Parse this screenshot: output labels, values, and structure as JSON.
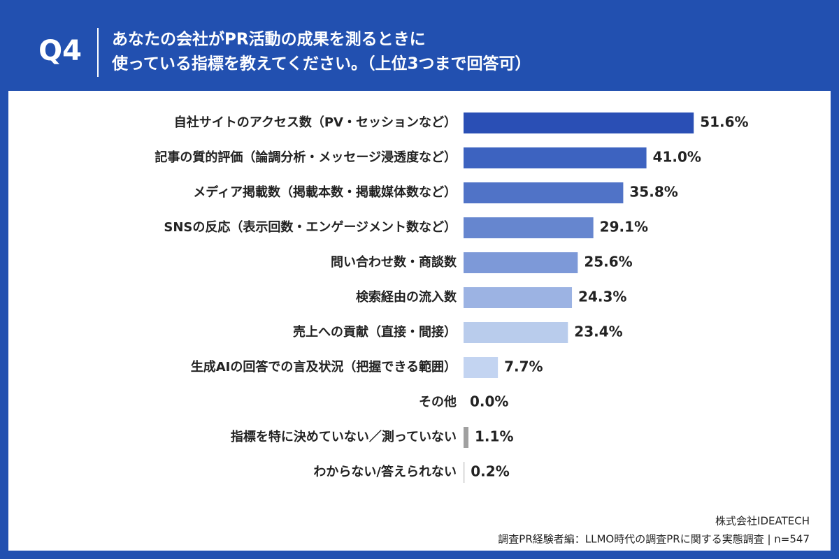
{
  "chart_data": {
    "type": "bar",
    "orientation": "horizontal",
    "question": "Q4",
    "title_lines": [
      "あなたの会社がPR活動の成果を測るときに",
      "使っている指標を教えてください。（上位3つまで回答可）"
    ],
    "categories": [
      "自社サイトのアクセス数（PV・セッションなど）",
      "記事の質的評価（論調分析・メッセージ浸透度など）",
      "メディア掲載数（掲載本数・掲載媒体数など）",
      "SNSの反応（表示回数・エンゲージメント数など）",
      "問い合わせ数・商談数",
      "検索経由の流入数",
      "売上への貢献（直接・間接）",
      "生成AIの回答での言及状況（把握できる範囲）",
      "その他",
      "指標を特に決めていない／測っていない",
      "わからない/答えられない"
    ],
    "values": [
      51.6,
      41.0,
      35.8,
      29.1,
      25.6,
      24.3,
      23.4,
      7.7,
      0.0,
      1.1,
      0.2
    ],
    "value_labels": [
      "51.6%",
      "41.0%",
      "35.8%",
      "29.1%",
      "25.6%",
      "24.3%",
      "23.4%",
      "7.7%",
      "0.0%",
      "1.1%",
      "0.2%"
    ],
    "colors": [
      "#2a4fb5",
      "#3d63c0",
      "#5073c7",
      "#6686cf",
      "#7d99d8",
      "#9cb3e3",
      "#b9ccec",
      "#c3d4f1",
      "#c3d4f1",
      "#a0a0a0",
      "#c0c0c0"
    ],
    "source_lines": [
      "株式会社IDEATECH",
      "調査PR経験者編：LLMO時代の調査PRに関する実態調査 | n=547"
    ]
  }
}
